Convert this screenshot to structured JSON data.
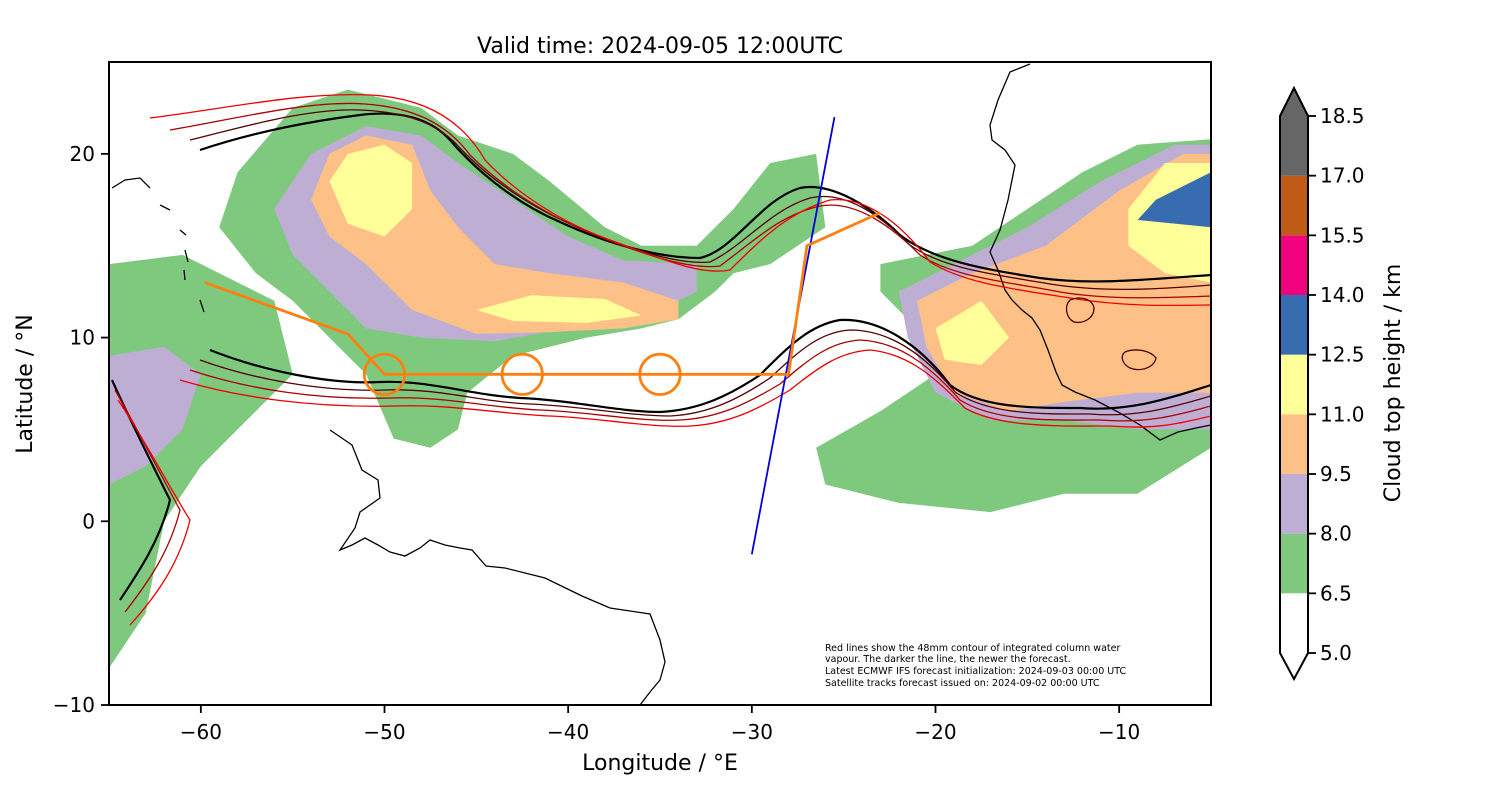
{
  "chart_data": {
    "type": "heatmap",
    "title": "Valid time: 2024-09-05 12:00UTC",
    "xlabel": "Longitude / °E",
    "ylabel": "Latitude / °N",
    "xlim": [
      -65,
      -5
    ],
    "ylim": [
      -10,
      25
    ],
    "xticks": [
      -60,
      -50,
      -40,
      -30,
      -20,
      -10
    ],
    "xtick_labels": [
      "−60",
      "−50",
      "−40",
      "−30",
      "−20",
      "−10"
    ],
    "yticks": [
      -10,
      0,
      10,
      20
    ],
    "ytick_labels": [
      "−10",
      "0",
      "10",
      "20"
    ],
    "grid": false,
    "colorbar": {
      "label": "Cloud top height / km",
      "levels": [
        5.0,
        6.5,
        8.0,
        9.5,
        11.0,
        12.5,
        14.0,
        15.5,
        17.0,
        18.5
      ],
      "level_labels": [
        "5.0",
        "6.5",
        "8.0",
        "9.5",
        "11.0",
        "12.5",
        "14.0",
        "15.5",
        "17.0",
        "18.5"
      ],
      "colors": [
        "#ffffff",
        "#7fc97f",
        "#beaed4",
        "#fdc086",
        "#ffff99",
        "#386cb0",
        "#f0027f",
        "#bf5b17",
        "#666666"
      ],
      "extend": "both"
    },
    "flight_track": {
      "color": "#ff7f0e",
      "points": [
        [
          -59.8,
          13.0
        ],
        [
          -52,
          10.2
        ],
        [
          -50,
          8.0
        ],
        [
          -28,
          8.0
        ],
        [
          -27,
          15.0
        ],
        [
          -23,
          16.8
        ]
      ]
    },
    "circles": {
      "color": "#ff7f0e",
      "radius_deg": 1.1,
      "centers": [
        [
          -50,
          8.0
        ],
        [
          -42.5,
          8.0
        ],
        [
          -35,
          8.0
        ]
      ]
    },
    "satellite_track": {
      "color": "#0000dd",
      "points": [
        [
          -30.0,
          -1.8
        ],
        [
          -25.5,
          22.0
        ]
      ]
    },
    "cloud_regions": [
      {
        "level": 6.5,
        "points": [
          [
            -59,
            16
          ],
          [
            -58,
            19
          ],
          [
            -55,
            22.5
          ],
          [
            -52,
            23.5
          ],
          [
            -48,
            22.5
          ],
          [
            -46,
            21
          ],
          [
            -43,
            20
          ],
          [
            -41,
            18.5
          ],
          [
            -38,
            16
          ],
          [
            -36,
            15
          ],
          [
            -33,
            15
          ],
          [
            -31,
            17
          ],
          [
            -29,
            19.5
          ],
          [
            -26.5,
            20
          ],
          [
            -26,
            16
          ],
          [
            -29,
            14
          ],
          [
            -31,
            13.5
          ],
          [
            -32,
            12.5
          ],
          [
            -34,
            11
          ],
          [
            -36,
            10.5
          ],
          [
            -39,
            10
          ],
          [
            -43,
            9
          ],
          [
            -45.5,
            7
          ],
          [
            -46,
            5
          ],
          [
            -47.5,
            4
          ],
          [
            -49.5,
            4.5
          ],
          [
            -51,
            8
          ],
          [
            -53,
            10
          ],
          [
            -55,
            12
          ],
          [
            -57,
            13.5
          ]
        ]
      },
      {
        "level": 8.0,
        "points": [
          [
            -56,
            17
          ],
          [
            -54,
            20
          ],
          [
            -51,
            21.5
          ],
          [
            -48,
            21
          ],
          [
            -46,
            19.5
          ],
          [
            -43,
            17.5
          ],
          [
            -40,
            15.5
          ],
          [
            -37,
            14.2
          ],
          [
            -33,
            14
          ],
          [
            -33,
            12.5
          ],
          [
            -36,
            11
          ],
          [
            -40,
            10.5
          ],
          [
            -44,
            9.8
          ],
          [
            -48,
            10
          ],
          [
            -51,
            10.5
          ],
          [
            -53,
            12.5
          ],
          [
            -55,
            14.5
          ]
        ]
      },
      {
        "level": 9.5,
        "points": [
          [
            -54,
            17.5
          ],
          [
            -53,
            20
          ],
          [
            -51,
            21
          ],
          [
            -48.5,
            20.5
          ],
          [
            -47.5,
            18
          ],
          [
            -46,
            16
          ],
          [
            -44,
            14
          ],
          [
            -41,
            13.5
          ],
          [
            -37,
            13
          ],
          [
            -34,
            12
          ],
          [
            -34,
            11
          ],
          [
            -37,
            10.5
          ],
          [
            -41,
            10.3
          ],
          [
            -45,
            10.2
          ],
          [
            -48.5,
            11.5
          ],
          [
            -51,
            14
          ],
          [
            -53,
            15.5
          ]
        ]
      },
      {
        "level": 11.0,
        "points": [
          [
            -53,
            18.5
          ],
          [
            -52,
            20
          ],
          [
            -50,
            20.5
          ],
          [
            -48.5,
            19.5
          ],
          [
            -48.5,
            17
          ],
          [
            -50,
            15.5
          ],
          [
            -52,
            16.2
          ]
        ]
      },
      {
        "level": 11.0,
        "points": [
          [
            -45,
            11.5
          ],
          [
            -42,
            12.3
          ],
          [
            -38,
            12.1
          ],
          [
            -36,
            11.2
          ],
          [
            -39,
            10.8
          ],
          [
            -43,
            10.9
          ]
        ]
      },
      {
        "level": 6.5,
        "points": [
          [
            -23,
            14
          ],
          [
            -18,
            15
          ],
          [
            -15,
            17
          ],
          [
            -12,
            19
          ],
          [
            -9,
            20.5
          ],
          [
            -5,
            20.8
          ],
          [
            -5,
            4
          ],
          [
            -9,
            1.5
          ],
          [
            -13,
            1.5
          ],
          [
            -17,
            0.5
          ],
          [
            -22,
            1
          ],
          [
            -26,
            2
          ],
          [
            -26.5,
            4
          ],
          [
            -23,
            6
          ],
          [
            -20,
            8
          ],
          [
            -21.5,
            11
          ],
          [
            -23,
            12.5
          ]
        ]
      },
      {
        "level": 8.0,
        "points": [
          [
            -22,
            12.5
          ],
          [
            -19,
            14
          ],
          [
            -15,
            16
          ],
          [
            -11,
            18.5
          ],
          [
            -7,
            20.5
          ],
          [
            -5,
            20.5
          ],
          [
            -5,
            5
          ],
          [
            -9,
            5
          ],
          [
            -13,
            5.5
          ],
          [
            -17,
            5.5
          ],
          [
            -20,
            7
          ],
          [
            -21.5,
            10
          ]
        ]
      },
      {
        "level": 9.5,
        "points": [
          [
            -21,
            12
          ],
          [
            -18,
            13.5
          ],
          [
            -14,
            15
          ],
          [
            -10,
            18
          ],
          [
            -6.5,
            20
          ],
          [
            -5,
            20
          ],
          [
            -5,
            7
          ],
          [
            -9,
            7
          ],
          [
            -13,
            6.5
          ],
          [
            -16,
            6
          ],
          [
            -19,
            7
          ],
          [
            -20.5,
            9.5
          ]
        ]
      },
      {
        "level": 11.0,
        "points": [
          [
            -20,
            10.5
          ],
          [
            -17.5,
            12
          ],
          [
            -16,
            10
          ],
          [
            -17.5,
            8.5
          ],
          [
            -19.5,
            8.8
          ]
        ]
      },
      {
        "level": 11.0,
        "points": [
          [
            -9.5,
            17
          ],
          [
            -7.5,
            19.5
          ],
          [
            -5,
            19.5
          ],
          [
            -5,
            13
          ],
          [
            -7.5,
            13.5
          ],
          [
            -9.5,
            15
          ]
        ]
      },
      {
        "level": 12.5,
        "points": [
          [
            -9,
            16.4
          ],
          [
            -8,
            17.5
          ],
          [
            -5,
            19
          ],
          [
            -5,
            16
          ]
        ]
      },
      {
        "level": 6.5,
        "points": [
          [
            -65,
            14
          ],
          [
            -61,
            14.5
          ],
          [
            -58,
            13
          ],
          [
            -56,
            12
          ],
          [
            -55,
            8
          ],
          [
            -58,
            5
          ],
          [
            -60,
            3
          ],
          [
            -62,
            0
          ],
          [
            -63,
            -5
          ],
          [
            -65,
            -8
          ]
        ]
      },
      {
        "level": 8.0,
        "points": [
          [
            -65,
            9
          ],
          [
            -62,
            9.5
          ],
          [
            -60,
            8
          ],
          [
            -61,
            5
          ],
          [
            -63,
            3
          ],
          [
            -65,
            2
          ]
        ]
      }
    ],
    "annotation": [
      "Red lines show the 48mm contour of integrated column water",
      "vapour. The darker the line, the newer the forecast.",
      "Latest ECMWF IFS forecast initialization: 2024-09-03 00:00 UTC",
      "Satellite tracks forecast issued on: 2024-09-02 00:00 UTC"
    ]
  }
}
